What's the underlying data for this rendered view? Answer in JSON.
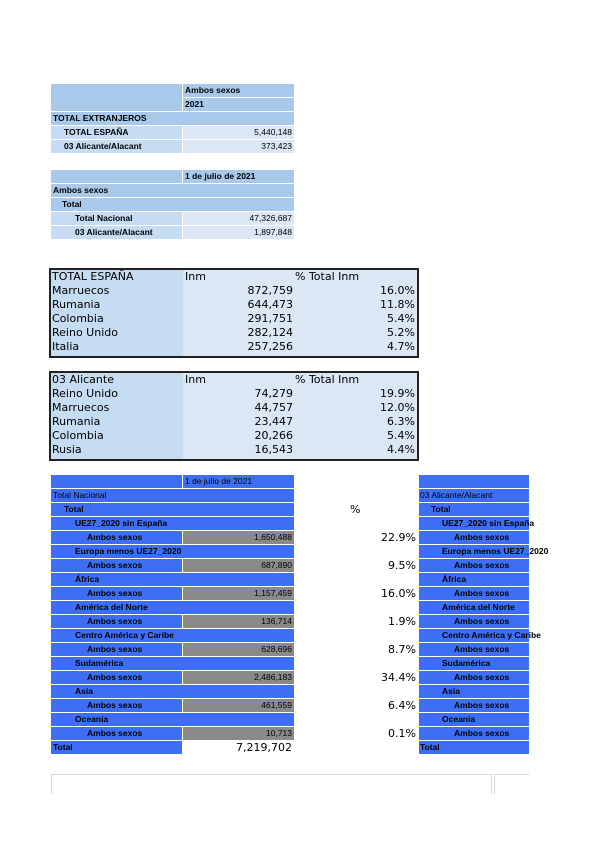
{
  "t1": {
    "col1": "Ambos sexos",
    "col2": "2021",
    "row_title": "TOTAL EXTRANJEROS",
    "rows": [
      {
        "label": "TOTAL ESPAÑA",
        "value": "5,440,148"
      },
      {
        "label": "03  Alicante/Alacant",
        "value": "373,423"
      }
    ]
  },
  "t2": {
    "col": "1 de julio de 2021",
    "r1": "Ambos sexos",
    "r2": "Total",
    "rows": [
      {
        "label": "Total Nacional",
        "value": "47,326,687"
      },
      {
        "label": "03  Alicante/Alacant",
        "value": "1,897,848"
      }
    ]
  },
  "t3": {
    "h1": "TOTAL ESPAÑA",
    "h2": "Inm",
    "h3": "% Total Inm",
    "rows": [
      {
        "label": "Marruecos",
        "value": "872,759",
        "pct": "16.0%"
      },
      {
        "label": "Rumania",
        "value": "644,473",
        "pct": "11.8%"
      },
      {
        "label": "Colombia",
        "value": "291,751",
        "pct": "5.4%"
      },
      {
        "label": "Reino Unido",
        "value": "282,124",
        "pct": "5.2%"
      },
      {
        "label": "Italia",
        "value": "257,256",
        "pct": "4.7%"
      }
    ]
  },
  "t4": {
    "h1": "03 Alicante",
    "h2": "Inm",
    "h3": "% Total Inm",
    "rows": [
      {
        "label": "Reino Unido",
        "value": "74,279",
        "pct": "19.9%"
      },
      {
        "label": "Marruecos",
        "value": "44,757",
        "pct": "12.0%"
      },
      {
        "label": "Rumania",
        "value": "23,447",
        "pct": "6.3%"
      },
      {
        "label": "Colombia",
        "value": "20,266",
        "pct": "5.4%"
      },
      {
        "label": "Rusia",
        "value": "16,543",
        "pct": "4.4%"
      }
    ]
  },
  "t5": {
    "date": "1 de julio de 2021",
    "nacional": "Total Nacional",
    "total": "Total",
    "pct_header": "%",
    "groups": [
      {
        "name": "UE27_2020 sin España",
        "sub": "Ambos sexos",
        "value": "1,650,488",
        "pct": "22.9%"
      },
      {
        "name": "Europa menos UE27_2020",
        "sub": "Ambos sexos",
        "value": "687,890",
        "pct": "9.5%"
      },
      {
        "name": "África",
        "sub": "Ambos sexos",
        "value": "1,157,459",
        "pct": "16.0%"
      },
      {
        "name": "América del Norte",
        "sub": "Ambos sexos",
        "value": "136,714",
        "pct": "1.9%"
      },
      {
        "name": "Centro América y Caribe",
        "sub": "Ambos sexos",
        "value": "628,696",
        "pct": "8.7%"
      },
      {
        "name": "Sudamérica",
        "sub": "Ambos sexos",
        "value": "2,486,183",
        "pct": "34.4%"
      },
      {
        "name": "Asia",
        "sub": "Ambos sexos",
        "value": "461,559",
        "pct": "6.4%"
      },
      {
        "name": "Oceanía",
        "sub": "Ambos sexos",
        "value": "10,713",
        "pct": "0.1%"
      }
    ],
    "grand_total_label": "Total",
    "grand_total_value": "7,219,702"
  },
  "t6": {
    "header": "03 Alicante/Alacant",
    "total": "Total",
    "groups": [
      {
        "name": "UE27_2020 sin España",
        "sub": "Ambos sexos"
      },
      {
        "name": "Europa menos UE27_2020",
        "sub": "Ambos sexos"
      },
      {
        "name": "África",
        "sub": "Ambos sexos"
      },
      {
        "name": "América del Norte",
        "sub": "Ambos sexos"
      },
      {
        "name": "Centro América y Caribe",
        "sub": "Ambos sexos"
      },
      {
        "name": "Sudamérica",
        "sub": "Ambos sexos"
      },
      {
        "name": "Asia",
        "sub": "Ambos sexos"
      },
      {
        "name": "Oceanía",
        "sub": "Ambos sexos"
      }
    ],
    "grand_total_label": "Total"
  },
  "colors": {
    "light_blue": "#c5dcf2",
    "header_blue": "#a9c9ea",
    "bright_blue": "#3d6ef5",
    "gray": "#8a8a8a"
  }
}
